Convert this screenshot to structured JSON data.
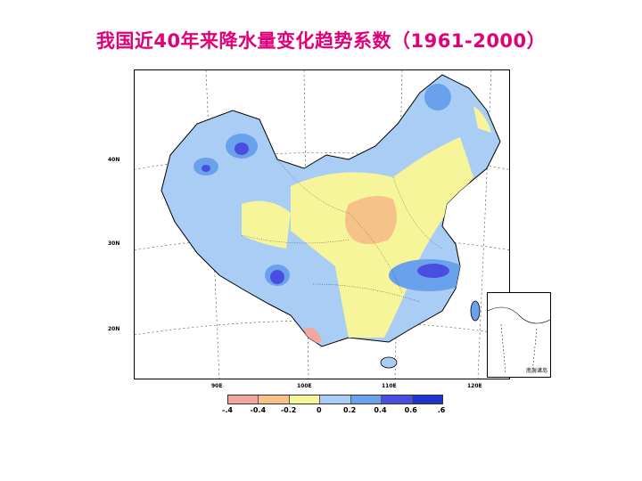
{
  "title": "我国近40年来降水量变化趋势系数（1961-2000）",
  "latitude_labels": [
    "40N",
    "30N",
    "20N"
  ],
  "longitude_labels": [
    "90E",
    "100E",
    "110E",
    "120E"
  ],
  "inset_label": "南海诸岛",
  "legend": {
    "colors": [
      "#f4a7a0",
      "#f5c38a",
      "#f6f59a",
      "#a9cdf4",
      "#6aa1ec",
      "#4a4ee0",
      "#1f32c9"
    ],
    "ticks": [
      "-.4",
      "-0.4",
      "-0.2",
      "0",
      "0.2",
      "0.4",
      "0.6",
      ".6"
    ]
  }
}
